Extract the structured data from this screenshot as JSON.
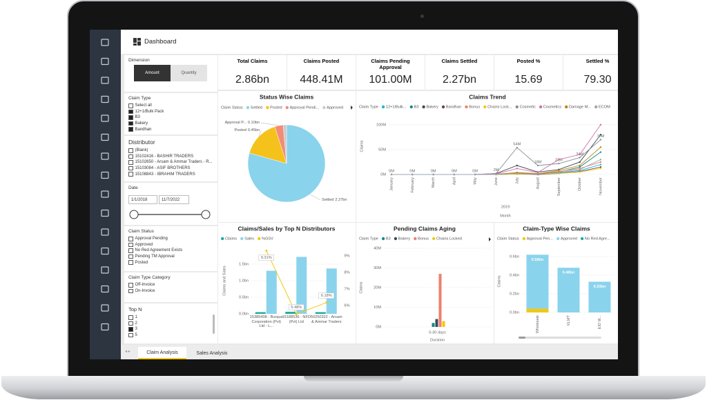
{
  "header": {
    "title": "Dashboard"
  },
  "filters": {
    "dimension": {
      "label": "Dimension",
      "options": [
        "Amount",
        "Quantity"
      ],
      "selected": 0
    },
    "claim_type": {
      "label": "Claim Type",
      "items": [
        {
          "text": "Select all",
          "checked": false
        },
        {
          "text": "12+1/Bulk Pack",
          "checked": true
        },
        {
          "text": "B3",
          "checked": true
        },
        {
          "text": "Bakery",
          "checked": true
        },
        {
          "text": "Bandhan",
          "checked": true
        }
      ]
    },
    "distributor": {
      "label": "Distributor",
      "items": [
        "(Blank)",
        "15102416 - BASHIR TRADERS",
        "15102650 - Arsam & Ammar Traders - R...",
        "15103084 - ASIF BROTHERS",
        "15108843 - IBRAHIM TRADERS"
      ]
    },
    "date": {
      "label": "Date",
      "start": "1/1/2018",
      "end": "11/7/2022"
    },
    "claim_status": {
      "label": "Claim Status",
      "items": [
        "Approval Pending",
        "Approved",
        "No Red Agreement Exists",
        "Pending TM Approval",
        "Posted"
      ]
    },
    "claim_type_category": {
      "label": "Claim Type Category",
      "items": [
        "Off-Invoice",
        "On-Invoice"
      ]
    },
    "top_n": {
      "label": "Top N",
      "items": [
        {
          "text": "1",
          "checked": false
        },
        {
          "text": "2",
          "checked": false
        },
        {
          "text": "3",
          "checked": true
        },
        {
          "text": "5",
          "checked": false
        }
      ]
    }
  },
  "kpis": [
    {
      "label": "Total Claims",
      "value": "2.86bn"
    },
    {
      "label": "Claims Posted",
      "value": "448.41M"
    },
    {
      "label": "Claims Pending Approval",
      "value": "101.00M"
    },
    {
      "label": "Claims Settled",
      "value": "2.27bn"
    },
    {
      "label": "Posted %",
      "value": "15.69"
    },
    {
      "label": "Settled %",
      "value": "79.30"
    }
  ],
  "charts": {
    "status_wise": {
      "type": "pie",
      "title": "Status Wise Claims",
      "legend_title": "Claim Status",
      "categories": [
        "Settled",
        "Posted",
        "Approval Pendi...",
        "Approved"
      ],
      "slice_labels": [
        "Settled",
        "Posted",
        "Approval P...",
        null
      ],
      "values": [
        2.27,
        0.45,
        0.1,
        0.04
      ],
      "value_labels": [
        "2.27bn",
        "0.45bn",
        "0.10bn",
        null
      ],
      "colors": [
        "#8ad3ec",
        "#f4c21b",
        "#f08c78",
        "#c9c9c9"
      ]
    },
    "claims_trend": {
      "type": "line",
      "title": "Claims Trend",
      "legend_title": "Claim Type",
      "categories": [
        "January",
        "February",
        "March",
        "April",
        "May",
        "June",
        "July",
        "August",
        "September",
        "October",
        "November"
      ],
      "x_group_label": "2019",
      "xlabel": "Month",
      "ylabel": "Claims",
      "ylim": [
        0,
        115
      ],
      "yticks": [
        {
          "value": 0,
          "label": "0M"
        },
        {
          "value": 50,
          "label": "50M"
        },
        {
          "value": 100,
          "label": "100M"
        }
      ],
      "series": [
        {
          "name": "12+1/Bulk...",
          "color": "#1fb6c9",
          "values": [
            0,
            0,
            0,
            0,
            0,
            0,
            1,
            1,
            3,
            8,
            20
          ]
        },
        {
          "name": "B3",
          "color": "#138a8a",
          "values": [
            0,
            0,
            0,
            0,
            0,
            0,
            2,
            1,
            5,
            15,
            45
          ]
        },
        {
          "name": "Bakery",
          "color": "#3c4a57",
          "values": [
            0,
            0,
            0,
            0,
            0,
            2,
            18,
            5,
            10,
            25,
            80
          ]
        },
        {
          "name": "Bandhan",
          "color": "#6b3e5e",
          "values": [
            0,
            0,
            0,
            0,
            0,
            0,
            1,
            0,
            2,
            6,
            15
          ]
        },
        {
          "name": "Bonus",
          "color": "#f07f6b",
          "values": [
            0,
            0,
            0,
            0,
            0,
            1,
            3,
            2,
            6,
            12,
            25
          ]
        },
        {
          "name": "Chains Lock...",
          "color": "#f2c811",
          "values": [
            0,
            0,
            0,
            0,
            0,
            0,
            1,
            1,
            2,
            5,
            12
          ]
        },
        {
          "name": "Cosmetic",
          "color": "#8a8f95",
          "values": [
            0,
            0,
            0,
            0,
            0,
            2,
            54,
            18,
            22,
            34,
            70
          ],
          "value_labels": [
            "0M",
            "0M",
            "0M",
            "0M",
            "0M",
            "2M",
            "54M",
            "18M",
            "22M",
            "34M",
            "70M"
          ]
        },
        {
          "name": "Cosmetics",
          "color": "#d16fa9",
          "values": [
            0,
            0,
            0,
            0,
            0,
            1,
            12,
            4,
            30,
            40,
            100
          ]
        },
        {
          "name": "Damage M...",
          "color": "#b8860b",
          "values": [
            0,
            0,
            0,
            0,
            0,
            0,
            4,
            2,
            8,
            18,
            55
          ]
        },
        {
          "name": "ECOM",
          "color": "#9aa5b1",
          "values": [
            0,
            0,
            0,
            0,
            0,
            0,
            2,
            1,
            4,
            10,
            30
          ]
        }
      ]
    },
    "claims_sales": {
      "type": "combo",
      "title": "Claims/Sales by Top N Distributors",
      "categories": [
        "15385408 - Burque Corporation (Pvt) Ltd - L...",
        "15188536 - NFD (Pvt) Ltd",
        "50250322 - Arsam & Ammar Traders"
      ],
      "ylabel": "Claims and Sales",
      "ylim": [
        0,
        2
      ],
      "yticks": [
        {
          "value": 0,
          "label": "0.0bn"
        },
        {
          "value": 0.5,
          "label": "0.5bn"
        },
        {
          "value": 1,
          "label": "1.0bn"
        },
        {
          "value": 1.5,
          "label": "1.5bn"
        }
      ],
      "y2lim": [
        5.5,
        9.5
      ],
      "y2ticks": [
        {
          "value": 6,
          "label": "6%"
        },
        {
          "value": 7,
          "label": "7%"
        },
        {
          "value": 8,
          "label": "8%"
        },
        {
          "value": 9,
          "label": "9%"
        }
      ],
      "series": [
        {
          "name": "Claims",
          "color": "#1aab9b",
          "kind": "bar",
          "values": [
            0.05,
            0.06,
            0.05
          ]
        },
        {
          "name": "Sales",
          "color": "#8ad3ec",
          "kind": "bar",
          "values": [
            1.3,
            1.72,
            1.37
          ]
        },
        {
          "name": "%GSV",
          "color": "#f2c811",
          "kind": "line",
          "axis": "y2",
          "values": [
            9.31,
            5.48,
            6.18
          ],
          "value_labels": [
            "9.31%",
            "5.48%",
            "6.18%"
          ]
        }
      ]
    },
    "pending_aging": {
      "type": "bar",
      "title": "Pending Claims Aging",
      "legend_title": "Claim Type",
      "categories": [
        "0-30 days"
      ],
      "xlabel": "Duration",
      "ylabel": "Claims",
      "ylim": [
        0,
        40
      ],
      "yticks": [
        {
          "value": 0,
          "label": "0M"
        },
        {
          "value": 10,
          "label": "10M"
        },
        {
          "value": 20,
          "label": "20M"
        },
        {
          "value": 30,
          "label": "30M"
        },
        {
          "value": 40,
          "label": "40M"
        }
      ],
      "series": [
        {
          "name": "B3",
          "color": "#138a8a",
          "values": [
            2
          ]
        },
        {
          "name": "Bakery",
          "color": "#3c4a57",
          "values": [
            4
          ]
        },
        {
          "name": "Bonus",
          "color": "#f07f6b",
          "values": [
            27
          ]
        },
        {
          "name": "Chains Locked",
          "color": "#f2c811",
          "values": [
            3
          ]
        }
      ]
    },
    "claim_type_wise": {
      "type": "stacked_bar",
      "title": "Claim-Type Wise Claims",
      "legend_title": "Claim Status",
      "categories": [
        "Wholesale",
        "KLMT",
        "EID M..."
      ],
      "ylabel": "Claims",
      "ylim": [
        0,
        0.7
      ],
      "yticks": [
        {
          "value": 0,
          "label": "0.0bn"
        },
        {
          "value": 0.2,
          "label": "0.2bn"
        },
        {
          "value": 0.4,
          "label": "0.4bn"
        },
        {
          "value": 0.6,
          "label": "0.6bn"
        }
      ],
      "series": [
        {
          "name": "Approval Pen...",
          "color": "#f2c811",
          "values": [
            0.04,
            0,
            0
          ]
        },
        {
          "name": "Approved",
          "color": "#8ad3ec",
          "values": [
            0.58,
            0.48,
            0.33
          ],
          "value_labels": [
            "0.58bn",
            "0.48bn",
            "0.33bn"
          ]
        },
        {
          "name": "No Red Agre...",
          "color": "#1aab9b",
          "values": [
            0,
            0,
            0
          ]
        }
      ]
    }
  },
  "tabs": {
    "items": [
      "Claim Analysis",
      "Sales Analysis"
    ],
    "active": 0
  }
}
